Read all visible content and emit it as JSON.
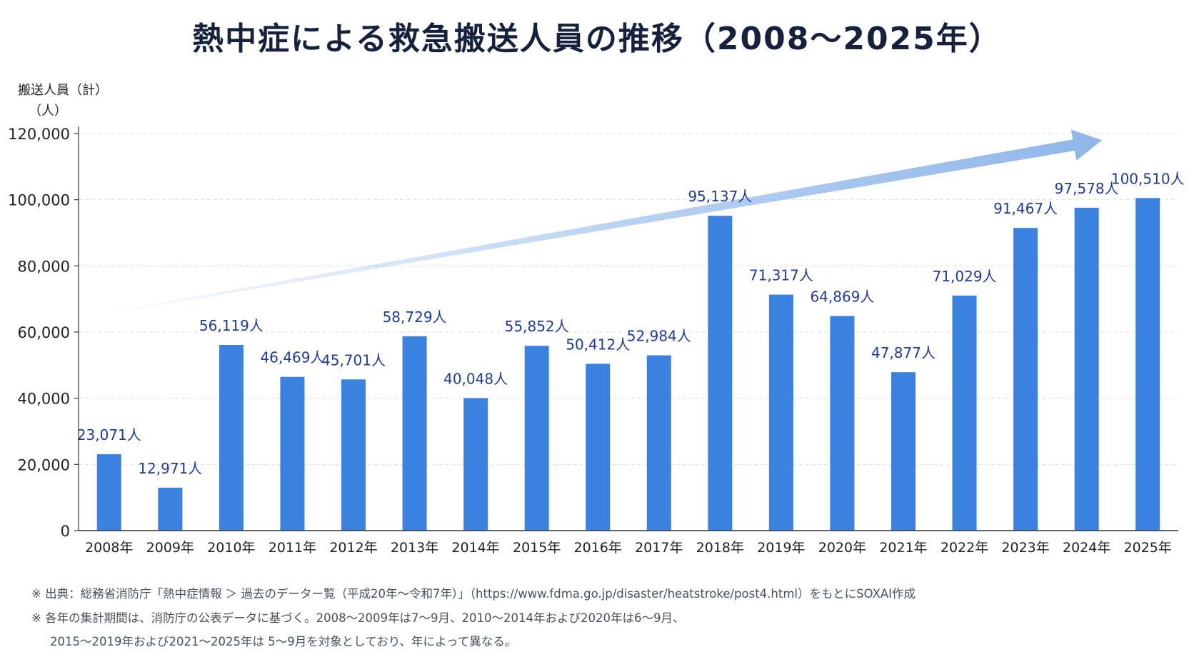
{
  "title": "熱中症による救急搬送人員の推移（2008～2025年）",
  "colors": {
    "bar": "#3b82e0",
    "value_label": "#1f3a9e",
    "axis_text": "#222222",
    "grid": "#d9dde3",
    "trend_arrow": "#8fb6ea",
    "title": "#16213e"
  },
  "chart_data": {
    "type": "bar",
    "title": "熱中症による救急搬送人員の推移（2008～2025年）",
    "ylabel": "搬送人員（計）",
    "ylabel_unit": "（人）",
    "xlabel": "",
    "ylim": [
      0,
      120000
    ],
    "yticks": [
      0,
      20000,
      40000,
      60000,
      80000,
      100000,
      120000
    ],
    "ytick_labels": [
      "0",
      "20,000",
      "40,000",
      "60,000",
      "80,000",
      "100,000",
      "120,000"
    ],
    "grid": true,
    "categories": [
      "2008年",
      "2009年",
      "2010年",
      "2011年",
      "2012年",
      "2013年",
      "2014年",
      "2015年",
      "2016年",
      "2017年",
      "2018年",
      "2019年",
      "2020年",
      "2021年",
      "2022年",
      "2023年",
      "2024年",
      "2025年"
    ],
    "values": [
      23071,
      12971,
      56119,
      46469,
      45701,
      58729,
      40048,
      55852,
      50412,
      52984,
      95137,
      71317,
      64869,
      47877,
      71029,
      91467,
      97578,
      100510
    ],
    "value_labels": [
      "23,071人",
      "12,971人",
      "56,119人",
      "46,469人",
      "45,701人",
      "58,729人",
      "40,048人",
      "55,852人",
      "50,412人",
      "52,984人",
      "95,137人",
      "71,317人",
      "64,869人",
      "47,877人",
      "71,029人",
      "91,467人",
      "97,578人",
      "100,510人"
    ],
    "annotation": "increasing trend arrow"
  },
  "footnotes": {
    "source": "※ 出典：総務省消防庁「熱中症情報 ＞ 過去のデーター覧（平成20年～令和7年）」（https://www.fdma.go.jp/disaster/heatstroke/post4.html）をもとにSOXAI作成",
    "period_line1": "※ 各年の集計期間は、消防庁の公表データに基づく。2008～2009年は7～9月、2010～2014年および2020年は6～9月、",
    "period_line2": "2015～2019年および2021～2025年は 5～9月を対象としており、年によって異なる。"
  }
}
